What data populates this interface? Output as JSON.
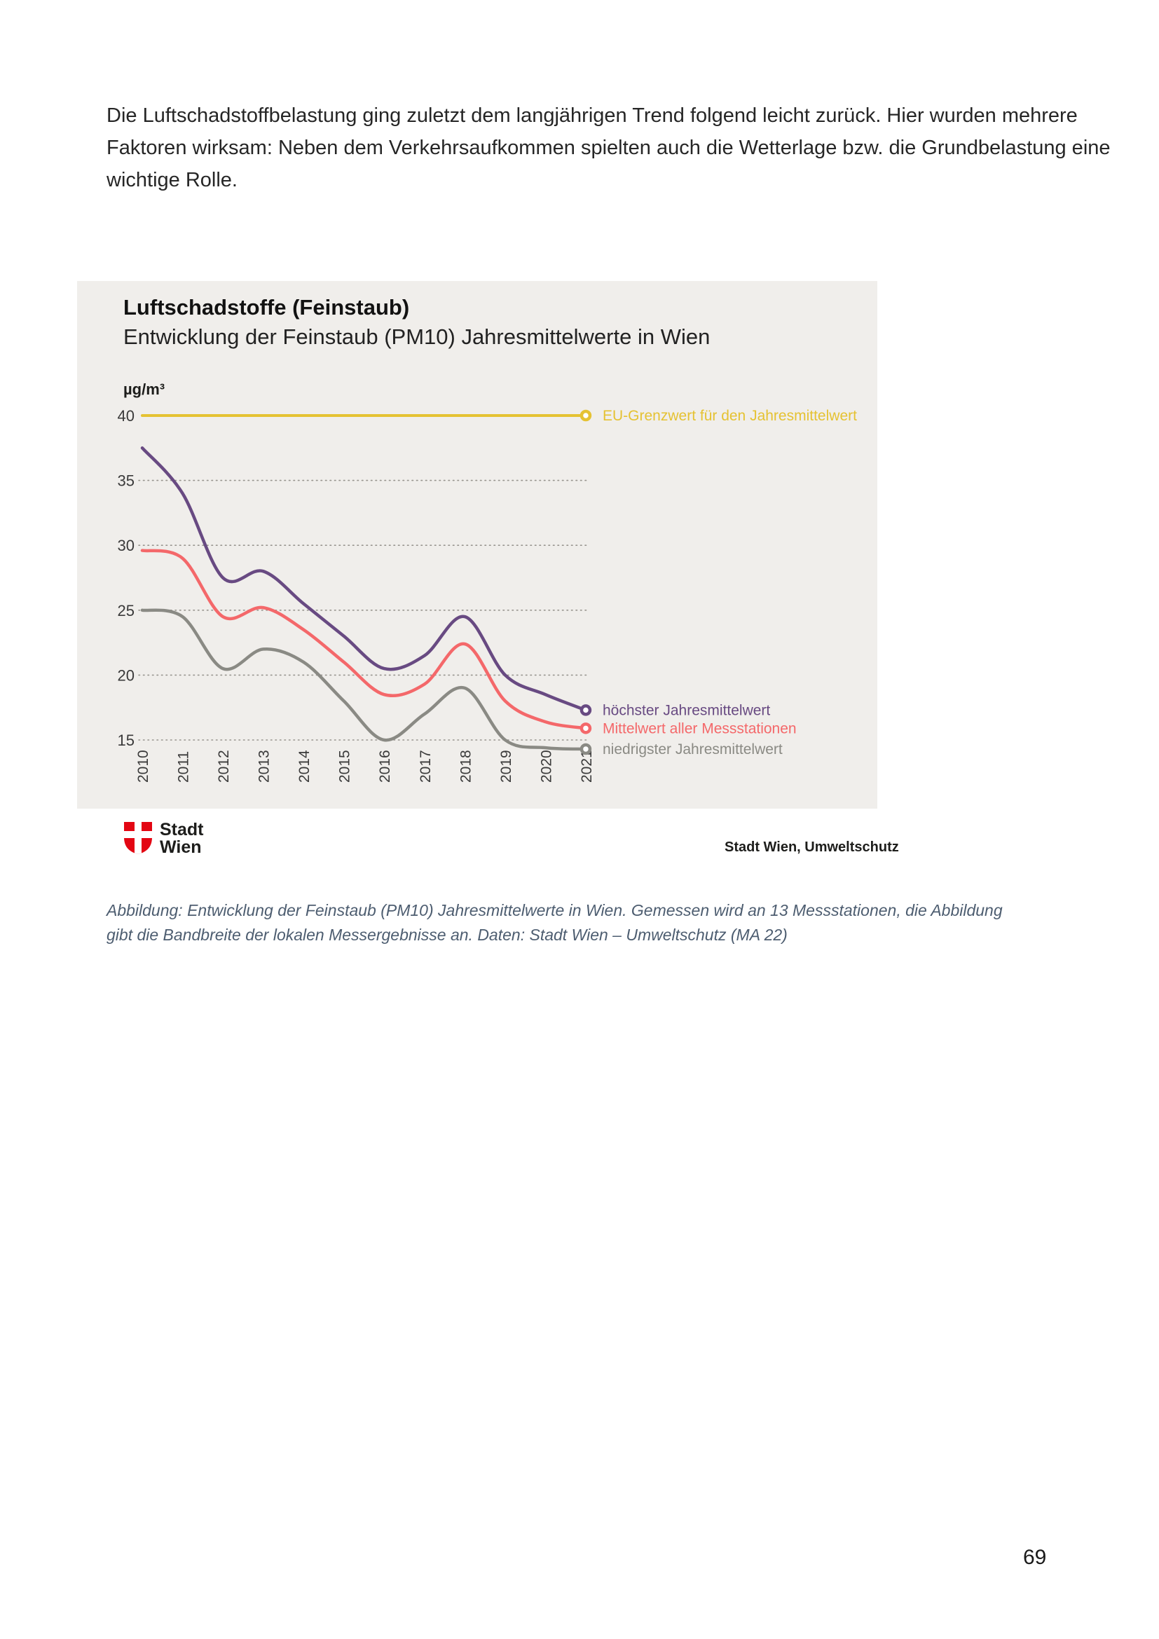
{
  "page": {
    "intro_paragraph": "Die Luftschadstoffbelastung ging zuletzt dem langjährigen Trend folgend leicht zurück. Hier wurden mehrere Faktoren wirksam: Neben dem Verkehrsaufkommen spielten auch die Wetterlage bzw. die Grundbelastung eine wichtige Rolle.",
    "page_number": "69"
  },
  "figure": {
    "logo_line1": "Stadt",
    "logo_line2": "Wien",
    "logo_color": "#e30613",
    "source": "Stadt Wien, Umweltschutz",
    "background_color": "#f0eeeb"
  },
  "caption": {
    "text": "Abbildung: Entwicklung der Feinstaub (PM10) Jahresmittelwerte in Wien. Gemessen wird an 13 Messstationen, die Abbildung gibt die Bandbreite der lokalen Messergebnisse an. Daten: Stadt Wien – Umweltschutz (MA 22)"
  },
  "chart_data": {
    "type": "line",
    "title": "Luftschadstoffe (Feinstaub)",
    "subtitle": "Entwicklung der Feinstaub (PM10) Jahresmittelwerte in Wien",
    "unit": "µg/m³",
    "x": [
      2010,
      2011,
      2012,
      2013,
      2014,
      2015,
      2016,
      2017,
      2018,
      2019,
      2020,
      2021
    ],
    "yticks": [
      40,
      35,
      30,
      25,
      20,
      15
    ],
    "ylim": [
      13,
      41.5
    ],
    "grid": "horizontal-dotted",
    "legend_position": "right-of-line-ends",
    "series": [
      {
        "name": "EU-Grenzwert für den Jahresmittelwert",
        "role": "limit-line",
        "color": "#e5c232",
        "values": [
          40,
          40,
          40,
          40,
          40,
          40,
          40,
          40,
          40,
          40,
          40,
          40
        ]
      },
      {
        "name": "höchster Jahresmittelwert",
        "role": "data-line",
        "color": "#684a82",
        "values": [
          37.5,
          34,
          27.5,
          28,
          25.5,
          23,
          20.5,
          21.5,
          24.5,
          20,
          18.5,
          17.3
        ]
      },
      {
        "name": "Mittelwert aller Messstationen",
        "role": "data-line",
        "color": "#f4686a",
        "values": [
          29.6,
          29,
          24.5,
          25.2,
          23.5,
          21,
          18.5,
          19.3,
          22.4,
          18,
          16.4,
          15.9
        ]
      },
      {
        "name": "niedrigster Jahresmittelwert",
        "role": "data-line",
        "color": "#8a8a84",
        "values": [
          25,
          24.5,
          20.5,
          22,
          21,
          18,
          15,
          17,
          19,
          15,
          14.4,
          14.3
        ]
      }
    ]
  }
}
